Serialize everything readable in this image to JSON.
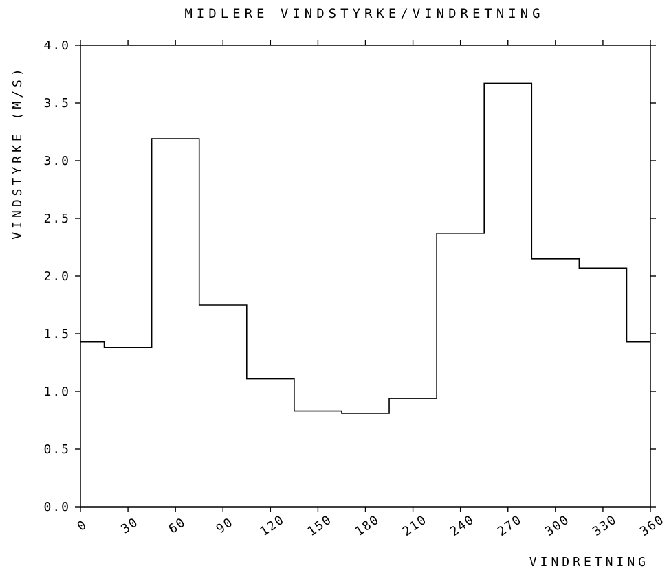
{
  "chart_data": {
    "type": "line",
    "title": "MIDLERE VINDSTYRKE/VINDRETNING",
    "xlabel": "VINDRETNING",
    "ylabel": "VINDSTYRKE (M/S)",
    "xlim": [
      0,
      360
    ],
    "ylim": [
      0.0,
      4.0
    ],
    "x_ticks": [
      "0",
      "30",
      "60",
      "90",
      "120",
      "150",
      "180",
      "210",
      "240",
      "270",
      "300",
      "330",
      "360"
    ],
    "y_ticks": [
      "0.0",
      "0.5",
      "1.0",
      "1.5",
      "2.0",
      "2.5",
      "3.0",
      "3.5",
      "4.0"
    ],
    "grid": false,
    "series": [
      {
        "step_edges": [
          0,
          15,
          45,
          75,
          105,
          135,
          165,
          195,
          225,
          255,
          285,
          315,
          345,
          360
        ],
        "values": [
          1.43,
          1.38,
          3.19,
          1.75,
          1.11,
          0.83,
          0.81,
          0.94,
          2.37,
          3.67,
          2.15,
          2.07,
          1.43
        ]
      }
    ],
    "line_color": "#000000"
  }
}
